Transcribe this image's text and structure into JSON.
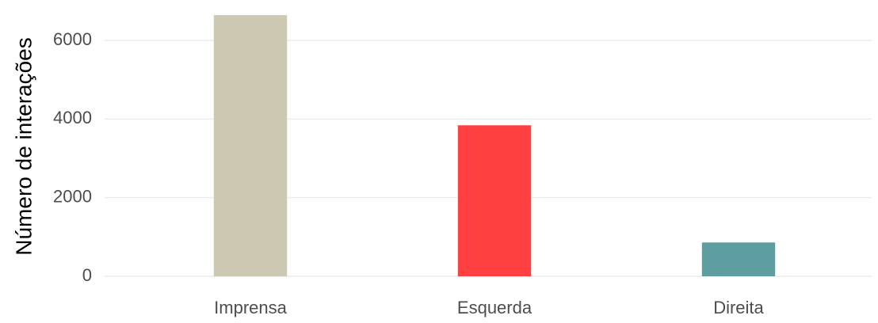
{
  "chart_data": {
    "type": "bar",
    "y_label": "Número de interações",
    "categories": [
      "Imprensa",
      "Esquerda",
      "Direita"
    ],
    "values": [
      6640,
      3840,
      860
    ],
    "colors": [
      "#ccc8b2",
      "#ff4040",
      "#5f9ea0"
    ],
    "ylim": [
      0,
      7000
    ],
    "yticks": [
      0,
      2000,
      4000,
      6000
    ],
    "grid": true
  }
}
